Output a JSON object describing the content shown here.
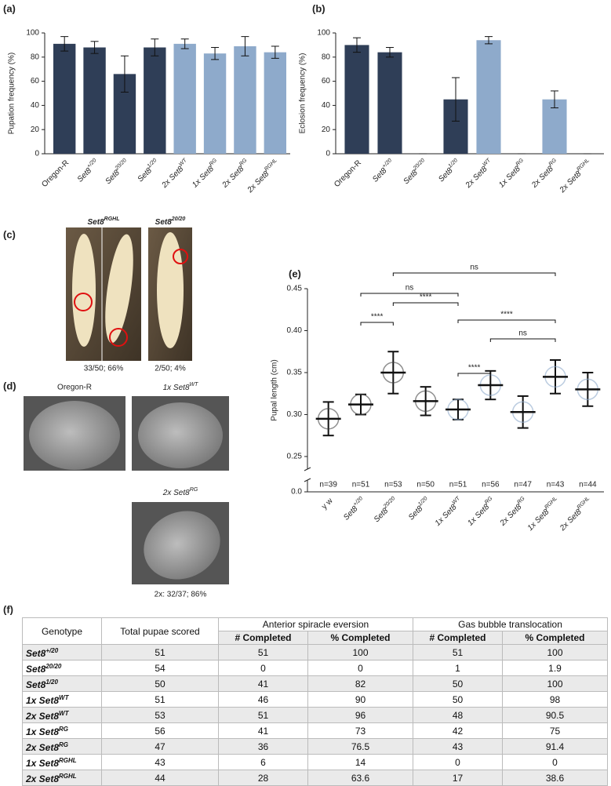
{
  "chart_data": [
    {
      "panel": "(a)",
      "type": "bar",
      "y_label": "Pupation frequency (%)",
      "categories": [
        "Oregon-R",
        {
          "text": "Set8",
          "sup": "+/20"
        },
        {
          "text": "Set8",
          "sup": "20/20"
        },
        {
          "text": "Set8",
          "sup": "1/20"
        },
        {
          "text": "2x Set8",
          "sup": "WT"
        },
        {
          "text": "1x Set8",
          "sup": "RG"
        },
        {
          "text": "2x Set8",
          "sup": "RG"
        },
        {
          "text": "2x Set8",
          "sup": "RGHL"
        }
      ],
      "values": [
        91,
        88,
        66,
        88,
        91,
        83,
        89,
        84
      ],
      "errors": [
        6,
        5,
        15,
        7,
        4,
        5,
        8,
        5
      ],
      "colors": [
        "#2f3e57",
        "#2f3e57",
        "#2f3e57",
        "#2f3e57",
        "#8eaacb",
        "#8eaacb",
        "#8eaacb",
        "#8eaacb"
      ],
      "ylim": [
        0,
        100
      ],
      "yticks": [
        0,
        20,
        40,
        60,
        80,
        100
      ]
    },
    {
      "panel": "(b)",
      "type": "bar",
      "y_label": "Eclosion frequency (%)",
      "categories": [
        "Oregon-R",
        {
          "text": "Set8",
          "sup": "+/20"
        },
        {
          "text": "Set8",
          "sup": "20/20"
        },
        {
          "text": "Set8",
          "sup": "1/20"
        },
        {
          "text": "2x Set8",
          "sup": "WT"
        },
        {
          "text": "1x Set8",
          "sup": "RG"
        },
        {
          "text": "2x Set8",
          "sup": "RG"
        },
        {
          "text": "2x Set8",
          "sup": "RGHL"
        }
      ],
      "values": [
        90,
        84,
        0,
        45,
        94,
        0,
        45,
        0
      ],
      "errors": [
        6,
        4,
        0,
        18,
        3,
        0,
        7,
        0
      ],
      "colors": [
        "#2f3e57",
        "#2f3e57",
        "#2f3e57",
        "#2f3e57",
        "#8eaacb",
        "#8eaacb",
        "#8eaacb",
        "#8eaacb"
      ],
      "ylim": [
        0,
        100
      ],
      "yticks": [
        0,
        20,
        40,
        60,
        80,
        100
      ]
    },
    {
      "panel": "(e)",
      "type": "dotplot",
      "y_label": "Pupal length (cm)",
      "categories": [
        "y w",
        {
          "text": "Set8",
          "sup": "+/20"
        },
        {
          "text": "Set8",
          "sup": "20/20"
        },
        {
          "text": "Set8",
          "sup": "1/20"
        },
        {
          "text": "1x Set8",
          "sup": "WT"
        },
        {
          "text": "1x Set8",
          "sup": "RG"
        },
        {
          "text": "2x Set8",
          "sup": "RG"
        },
        {
          "text": "1x Set8",
          "sup": "RGHL"
        },
        {
          "text": "2x Set8",
          "sup": "RGHL"
        }
      ],
      "values": [
        0.295,
        0.312,
        0.35,
        0.316,
        0.306,
        0.335,
        0.303,
        0.345,
        0.33
      ],
      "errors": [
        0.02,
        0.012,
        0.025,
        0.017,
        0.012,
        0.017,
        0.019,
        0.02,
        0.02
      ],
      "n_labels": [
        "n=39",
        "n=51",
        "n=53",
        "n=50",
        "n=51",
        "n=56",
        "n=47",
        "n=43",
        "n=44"
      ],
      "colors": [
        "#444",
        "#444",
        "#444",
        "#444",
        "#8eaacb",
        "#8eaacb",
        "#8eaacb",
        "#8eaacb",
        "#8eaacb"
      ],
      "ylim": [
        0,
        0.45
      ],
      "y_break": [
        0.013,
        0.235
      ],
      "yticks": [
        {
          "value": 0,
          "label": "0.0"
        },
        0.25,
        {
          "value": 0.3,
          "label": "0.30"
        },
        0.35,
        {
          "value": 0.4,
          "label": "0.40"
        },
        0.45
      ],
      "brackets": [
        {
          "from": 2,
          "to": 7,
          "label": "ns"
        },
        {
          "from": 1,
          "to": 4,
          "label": "ns"
        },
        {
          "from": 2,
          "to": 4,
          "label": "****"
        },
        {
          "from": 1,
          "to": 2,
          "label": "****"
        },
        {
          "from": 4,
          "to": 7,
          "label": "****"
        },
        {
          "from": 5,
          "to": 7,
          "label": "ns"
        },
        {
          "from": 4,
          "to": 5,
          "label": "****"
        }
      ]
    }
  ],
  "panel_c": {
    "panel": "(c)",
    "labels": [
      {
        "text": "Set8",
        "sup": "RGHL"
      },
      {
        "text": "Set8",
        "sup": "20/20"
      }
    ],
    "captions": [
      "33/50; 66%",
      "2/50; 4%"
    ]
  },
  "panel_d": {
    "panel": "(d)",
    "labels": [
      "Oregon-R",
      {
        "text": "1x Set8",
        "sup": "WT"
      },
      {
        "text": "2x Set8",
        "sup": "RG"
      }
    ],
    "caption": "2x: 32/37; 86%"
  },
  "table": {
    "panel": "(f)",
    "header": [
      "Genotype",
      "Total pupae scored",
      "Anterior spiracle eversion",
      "Gas bubble translocation"
    ],
    "subheader": [
      "# Completed",
      "% Completed",
      "# Completed",
      "% Completed"
    ],
    "rows": [
      [
        {
          "text": "Set8",
          "sup": "+/20"
        },
        51,
        51,
        100,
        51,
        100
      ],
      [
        {
          "text": "Set8",
          "sup": "20/20"
        },
        54,
        0,
        0,
        1,
        1.9
      ],
      [
        {
          "text": "Set8",
          "sup": "1/20"
        },
        50,
        41,
        82,
        50,
        100
      ],
      [
        {
          "text": "1x Set8",
          "sup": "WT"
        },
        51,
        46,
        90,
        50,
        98
      ],
      [
        {
          "text": "2x Set8",
          "sup": "WT"
        },
        53,
        51,
        96,
        48,
        90.5
      ],
      [
        {
          "text": "1x Set8",
          "sup": "RG"
        },
        56,
        41,
        73,
        42,
        75
      ],
      [
        {
          "text": "2x Set8",
          "sup": "RG"
        },
        47,
        36,
        76.5,
        43,
        91.4
      ],
      [
        {
          "text": "1x Set8",
          "sup": "RGHL"
        },
        43,
        6,
        14,
        0,
        0
      ],
      [
        {
          "text": "2x Set8",
          "sup": "RGHL"
        },
        44,
        28,
        63.6,
        17,
        38.6
      ]
    ]
  }
}
